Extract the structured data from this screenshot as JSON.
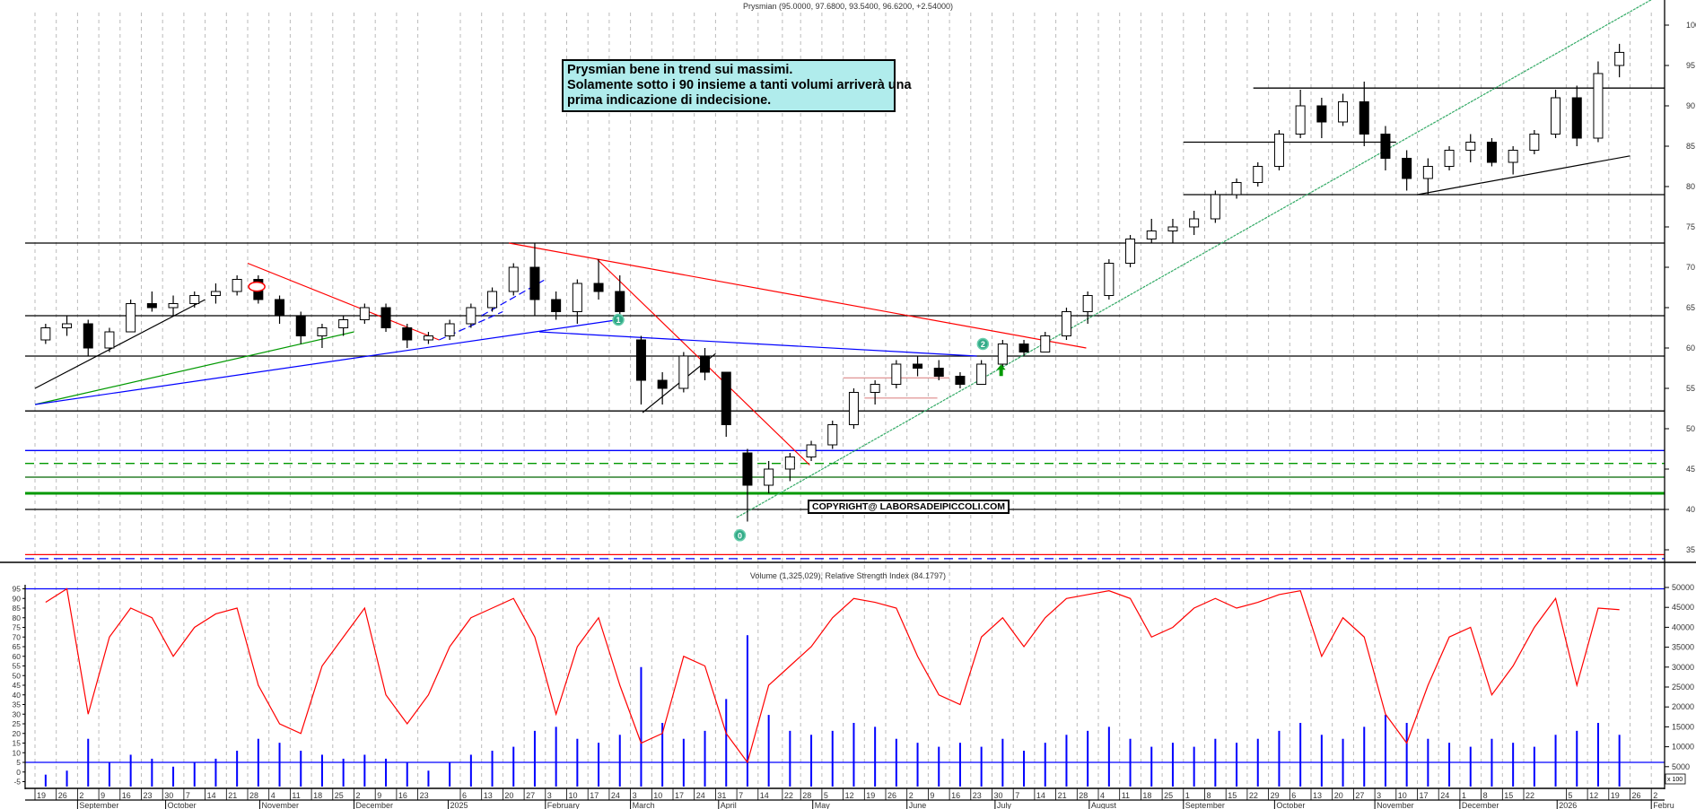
{
  "chart_data": [
    {
      "type": "candlestick",
      "title": "Prysmian (95.0000, 97.6800, 93.5400, 96.6200, +2.54000)",
      "ylim": [
        32.5,
        103
      ],
      "yticks": [
        35,
        40,
        45,
        50,
        55,
        60,
        65,
        70,
        75,
        80,
        85,
        90,
        95,
        100
      ],
      "grid": "vertical dashed",
      "candle_period": "week",
      "candle_start": "2024-08-19",
      "ohlc": [
        [
          61,
          63,
          60.5,
          62.5
        ],
        [
          62.5,
          64,
          61.5,
          63
        ],
        [
          63,
          63.5,
          59,
          60
        ],
        [
          60,
          62.5,
          59.5,
          62
        ],
        [
          62,
          66,
          62,
          65.5
        ],
        [
          65.5,
          67,
          64.5,
          65
        ],
        [
          65,
          66.5,
          64,
          65.5
        ],
        [
          65.5,
          67,
          65,
          66.5
        ],
        [
          66.5,
          68,
          65.5,
          67
        ],
        [
          67,
          69,
          66.5,
          68.5
        ],
        [
          68.5,
          69,
          65.5,
          66
        ],
        [
          66,
          66.5,
          63,
          64
        ],
        [
          64,
          64.5,
          60.5,
          61.5
        ],
        [
          61.5,
          63,
          60,
          62.5
        ],
        [
          62.5,
          64,
          61.5,
          63.5
        ],
        [
          63.5,
          65.5,
          63,
          65
        ],
        [
          65,
          65.5,
          62,
          62.5
        ],
        [
          62.5,
          63,
          60,
          61
        ],
        [
          61,
          62,
          60.5,
          61.5
        ],
        [
          61.5,
          63.5,
          61,
          63
        ],
        [
          63,
          65.5,
          62.5,
          65
        ],
        [
          65,
          67.5,
          64.5,
          67
        ],
        [
          67,
          70.5,
          66.5,
          70
        ],
        [
          70,
          73,
          64,
          66
        ],
        [
          66,
          67,
          63.5,
          64.5
        ],
        [
          64.5,
          68.5,
          63,
          68
        ],
        [
          68,
          71,
          66,
          67
        ],
        [
          67,
          69,
          63.5,
          64.5
        ],
        [
          61,
          61.5,
          53,
          56
        ],
        [
          56,
          57,
          53,
          55
        ],
        [
          55,
          59.5,
          54.5,
          59
        ],
        [
          59,
          60,
          56,
          57
        ],
        [
          57,
          57,
          49,
          50.5
        ],
        [
          47,
          47.5,
          38.5,
          43
        ],
        [
          43,
          46,
          42,
          45
        ],
        [
          45,
          47,
          43.5,
          46.5
        ],
        [
          46.5,
          48.5,
          46,
          48
        ],
        [
          48,
          51,
          47.5,
          50.5
        ],
        [
          50.5,
          55,
          50,
          54.5
        ],
        [
          54.5,
          56,
          53,
          55.5
        ],
        [
          55.5,
          58.5,
          55,
          58
        ],
        [
          58,
          59,
          56.5,
          57.5
        ],
        [
          57.5,
          58.5,
          56,
          56.5
        ],
        [
          56.5,
          57,
          55,
          55.5
        ],
        [
          55.5,
          58.5,
          55.5,
          58
        ],
        [
          58,
          61,
          57.5,
          60.5
        ],
        [
          60.5,
          61,
          59,
          59.5
        ],
        [
          59.5,
          62,
          59.5,
          61.5
        ],
        [
          61.5,
          65,
          61,
          64.5
        ],
        [
          64.5,
          67,
          63,
          66.5
        ],
        [
          66.5,
          71,
          66,
          70.5
        ],
        [
          70.5,
          74,
          70,
          73.5
        ],
        [
          73.5,
          76,
          73,
          74.5
        ],
        [
          74.5,
          76,
          73,
          75
        ],
        [
          75,
          77,
          74,
          76
        ],
        [
          76,
          79.5,
          75.5,
          79
        ],
        [
          79,
          81,
          78.5,
          80.5
        ],
        [
          80.5,
          83,
          80,
          82.5
        ],
        [
          82.5,
          87,
          82,
          86.5
        ],
        [
          86.5,
          92,
          86,
          90
        ],
        [
          90,
          91,
          86,
          88
        ],
        [
          88,
          91.5,
          87.5,
          90.5
        ],
        [
          90.5,
          93,
          85,
          86.5
        ],
        [
          86.5,
          87.5,
          82,
          83.5
        ],
        [
          83.5,
          84.5,
          79.5,
          81
        ],
        [
          81,
          83.5,
          79,
          82.5
        ],
        [
          82.5,
          85,
          82,
          84.5
        ],
        [
          84.5,
          86.5,
          83,
          85.5
        ],
        [
          85.5,
          86,
          82.5,
          83
        ],
        [
          83,
          85,
          81.5,
          84.5
        ],
        [
          84.5,
          87,
          84,
          86.5
        ],
        [
          86.5,
          92,
          86,
          91
        ],
        [
          91,
          92.5,
          85,
          86
        ],
        [
          86,
          95.5,
          85.5,
          94
        ],
        [
          95,
          97.68,
          93.54,
          96.62
        ]
      ],
      "hlines": [
        {
          "price": 92.2,
          "color": "#000000",
          "from": "2025-09-24"
        },
        {
          "price": 85.5,
          "color": "#000000",
          "from": "2025-09-01",
          "to": "2025-11-10"
        },
        {
          "price": 79,
          "color": "#000000",
          "from": "2025-09-01"
        },
        {
          "price": 73,
          "color": "#000000"
        },
        {
          "price": 64,
          "color": "#000000"
        },
        {
          "price": 59,
          "color": "#000000"
        },
        {
          "price": 52.2,
          "color": "#000000"
        },
        {
          "price": 47.3,
          "color": "#0000ff"
        },
        {
          "price": 45.7,
          "color": "#009900",
          "dashed": true
        },
        {
          "price": 44,
          "color": "#006600"
        },
        {
          "price": 42,
          "color": "#009900",
          "thick": true
        },
        {
          "price": 40,
          "color": "#000000"
        },
        {
          "price": 34.4,
          "color": "#ff0000"
        },
        {
          "price": 33.9,
          "color": "#0000ff",
          "dashed": true
        }
      ],
      "trendlines": [
        {
          "from": [
            "2024-08-19",
            55
          ],
          "to": [
            "2024-10-14",
            66
          ],
          "color": "#000000"
        },
        {
          "from": [
            "2024-08-19",
            53
          ],
          "to": [
            "2024-12-02",
            62
          ],
          "color": "#009900"
        },
        {
          "from": [
            "2024-08-19",
            53
          ],
          "to": [
            "2025-02-27",
            63.5
          ],
          "color": "#0000ff"
        },
        {
          "from": [
            "2024-10-28",
            70.5
          ],
          "to": [
            "2024-12-30",
            61
          ],
          "color": "#ff0000"
        },
        {
          "from": [
            "2025-01-22",
            73
          ],
          "to": [
            "2025-07-31",
            60
          ],
          "color": "#ff0000"
        },
        {
          "from": [
            "2025-02-20",
            71
          ],
          "to": [
            "2025-05-01",
            45.5
          ],
          "color": "#ff0000"
        },
        {
          "from": [
            "2025-02-01",
            62
          ],
          "to": [
            "2025-06-25",
            59
          ],
          "color": "#0000ff"
        },
        {
          "from": [
            "2024-12-30",
            61
          ],
          "to": [
            "2025-01-20",
            64.5
          ],
          "color": "#0000ff",
          "dashed": true
        },
        {
          "from": [
            "2025-01-13",
            64
          ],
          "to": [
            "2025-02-03",
            68.5
          ],
          "color": "#0000ff",
          "dashed": true
        },
        {
          "from": [
            "2025-03-07",
            52
          ],
          "to": [
            "2025-03-31",
            59.3
          ],
          "color": "#000000"
        },
        {
          "from": [
            "2025-04-07",
            39
          ],
          "to": [
            "2026-02-06",
            104
          ],
          "color": "#33aa66",
          "dashed": true
        },
        {
          "from": [
            "2025-11-17",
            79
          ],
          "to": [
            "2026-01-26",
            83.8
          ],
          "color": "#000000"
        },
        {
          "from": [
            "2025-05-12",
            56.3
          ],
          "to": [
            "2025-06-16",
            56.3
          ],
          "color": "#dd8888"
        },
        {
          "from": [
            "2025-05-19",
            53.8
          ],
          "to": [
            "2025-06-12",
            53.8
          ],
          "color": "#dd8888"
        }
      ],
      "markers": [
        {
          "label": "0",
          "date": "2025-04-08",
          "price": 36.8
        },
        {
          "label": "1",
          "date": "2025-02-27",
          "price": 63.5
        },
        {
          "label": "2",
          "date": "2025-06-27",
          "price": 60.5
        }
      ],
      "arrow": {
        "date": "2025-07-03",
        "price": 57.3,
        "color": "#009900"
      },
      "ellipse": {
        "date": "2024-10-31",
        "price": 67.6,
        "color": "#ff0000"
      },
      "annotation": [
        "Prysmian bene in trend sui massimi.",
        "Solamente sotto i 90 insieme a tanti volumi arriverà una",
        "prima indicazione di indecisione."
      ],
      "watermark": "COPYRIGHT@ LABORSADEIPICCOLI.COM"
    },
    {
      "type": "bar+line",
      "title": "Volume (1,325,029), Relative Strength Index (84.1797)",
      "volume_unit_label": "x 100",
      "volume_ylim": [
        0,
        50000
      ],
      "volume_ticks": [
        5000,
        10000,
        15000,
        20000,
        25000,
        30000,
        35000,
        40000,
        45000,
        50000
      ],
      "rsi_ylim": [
        -5,
        95
      ],
      "rsi_ticks": [
        95,
        90,
        85,
        80,
        75,
        70,
        65,
        60,
        55,
        50,
        45,
        40,
        35,
        30,
        25,
        20,
        15,
        10,
        5,
        0,
        -5
      ],
      "rsi_bands": [
        95,
        5
      ],
      "volume": [
        3000,
        4000,
        12000,
        6000,
        8000,
        7000,
        5000,
        6000,
        7000,
        9000,
        12000,
        11000,
        9000,
        8000,
        7000,
        8000,
        7000,
        6000,
        4000,
        6000,
        8000,
        9000,
        10000,
        14000,
        15000,
        12000,
        11000,
        13000,
        30000,
        16000,
        12000,
        14000,
        22000,
        38000,
        18000,
        14000,
        13000,
        14000,
        16000,
        15000,
        12000,
        11000,
        10000,
        11000,
        10000,
        12000,
        9000,
        11000,
        13000,
        14000,
        15000,
        12000,
        10000,
        11000,
        10000,
        12000,
        11000,
        12000,
        14000,
        16000,
        13000,
        12000,
        15000,
        18000,
        16000,
        12000,
        11000,
        10000,
        12000,
        11000,
        10000,
        13000,
        14000,
        16000,
        13000
      ],
      "rsi": [
        88,
        95,
        30,
        70,
        85,
        80,
        60,
        75,
        82,
        85,
        45,
        25,
        20,
        55,
        70,
        85,
        40,
        25,
        40,
        65,
        80,
        85,
        90,
        70,
        30,
        65,
        80,
        45,
        15,
        20,
        60,
        55,
        20,
        5,
        45,
        55,
        65,
        80,
        90,
        88,
        85,
        60,
        40,
        35,
        70,
        80,
        65,
        80,
        90,
        92,
        94,
        90,
        70,
        75,
        85,
        90,
        85,
        88,
        92,
        94,
        60,
        80,
        70,
        30,
        15,
        45,
        70,
        75,
        40,
        55,
        75,
        90,
        45,
        85,
        84.18
      ]
    }
  ],
  "x_axis": {
    "days": [
      [
        "2024-08-19",
        "19"
      ],
      [
        "2024-08-26",
        "26"
      ],
      [
        "2024-09-02",
        "2"
      ],
      [
        "2024-09-09",
        "9"
      ],
      [
        "2024-09-16",
        "16"
      ],
      [
        "2024-09-23",
        "23"
      ],
      [
        "2024-09-30",
        "30"
      ],
      [
        "2024-10-07",
        "7"
      ],
      [
        "2024-10-14",
        "14"
      ],
      [
        "2024-10-21",
        "21"
      ],
      [
        "2024-10-28",
        "28"
      ],
      [
        "2024-11-04",
        "4"
      ],
      [
        "2024-11-11",
        "11"
      ],
      [
        "2024-11-18",
        "18"
      ],
      [
        "2024-11-25",
        "25"
      ],
      [
        "2024-12-02",
        "2"
      ],
      [
        "2024-12-09",
        "9"
      ],
      [
        "2024-12-16",
        "16"
      ],
      [
        "2024-12-23",
        "23"
      ],
      [
        "2025-01-06",
        "6"
      ],
      [
        "2025-01-13",
        "13"
      ],
      [
        "2025-01-20",
        "20"
      ],
      [
        "2025-01-27",
        "27"
      ],
      [
        "2025-02-03",
        "3"
      ],
      [
        "2025-02-10",
        "10"
      ],
      [
        "2025-02-17",
        "17"
      ],
      [
        "2025-02-24",
        "24"
      ],
      [
        "2025-03-03",
        "3"
      ],
      [
        "2025-03-10",
        "10"
      ],
      [
        "2025-03-17",
        "17"
      ],
      [
        "2025-03-24",
        "24"
      ],
      [
        "2025-03-31",
        "31"
      ],
      [
        "2025-04-07",
        "7"
      ],
      [
        "2025-04-14",
        "14"
      ],
      [
        "2025-04-22",
        "22"
      ],
      [
        "2025-04-28",
        "28"
      ],
      [
        "2025-05-05",
        "5"
      ],
      [
        "2025-05-12",
        "12"
      ],
      [
        "2025-05-19",
        "19"
      ],
      [
        "2025-05-26",
        "26"
      ],
      [
        "2025-06-02",
        "2"
      ],
      [
        "2025-06-09",
        "9"
      ],
      [
        "2025-06-16",
        "16"
      ],
      [
        "2025-06-23",
        "23"
      ],
      [
        "2025-06-30",
        "30"
      ],
      [
        "2025-07-07",
        "7"
      ],
      [
        "2025-07-14",
        "14"
      ],
      [
        "2025-07-21",
        "21"
      ],
      [
        "2025-07-28",
        "28"
      ],
      [
        "2025-08-04",
        "4"
      ],
      [
        "2025-08-11",
        "11"
      ],
      [
        "2025-08-18",
        "18"
      ],
      [
        "2025-08-25",
        "25"
      ],
      [
        "2025-09-01",
        "1"
      ],
      [
        "2025-09-08",
        "8"
      ],
      [
        "2025-09-15",
        "15"
      ],
      [
        "2025-09-22",
        "22"
      ],
      [
        "2025-09-29",
        "29"
      ],
      [
        "2025-10-06",
        "6"
      ],
      [
        "2025-10-13",
        "13"
      ],
      [
        "2025-10-20",
        "20"
      ],
      [
        "2025-10-27",
        "27"
      ],
      [
        "2025-11-03",
        "3"
      ],
      [
        "2025-11-10",
        "10"
      ],
      [
        "2025-11-17",
        "17"
      ],
      [
        "2025-11-24",
        "24"
      ],
      [
        "2025-12-01",
        "1"
      ],
      [
        "2025-12-08",
        "8"
      ],
      [
        "2025-12-15",
        "15"
      ],
      [
        "2025-12-22",
        "22"
      ],
      [
        "2026-01-05",
        "5"
      ],
      [
        "2026-01-12",
        "12"
      ],
      [
        "2026-01-19",
        "19"
      ],
      [
        "2026-01-26",
        "26"
      ],
      [
        "2026-02-02",
        "2"
      ]
    ],
    "months": [
      [
        "2024-09-02",
        "September"
      ],
      [
        "2024-10-01",
        "October"
      ],
      [
        "2024-11-01",
        "November"
      ],
      [
        "2024-12-02",
        "December"
      ],
      [
        "2025-01-02",
        "2025"
      ],
      [
        "2025-02-03",
        "February"
      ],
      [
        "2025-03-03",
        "March"
      ],
      [
        "2025-04-01",
        "April"
      ],
      [
        "2025-05-02",
        "May"
      ],
      [
        "2025-06-02",
        "June"
      ],
      [
        "2025-07-01",
        "July"
      ],
      [
        "2025-08-01",
        "August"
      ],
      [
        "2025-09-01",
        "September"
      ],
      [
        "2025-10-01",
        "October"
      ],
      [
        "2025-11-03",
        "November"
      ],
      [
        "2025-12-01",
        "December"
      ],
      [
        "2026-01-02",
        "2026"
      ],
      [
        "2026-02-02",
        "Febru"
      ]
    ]
  }
}
